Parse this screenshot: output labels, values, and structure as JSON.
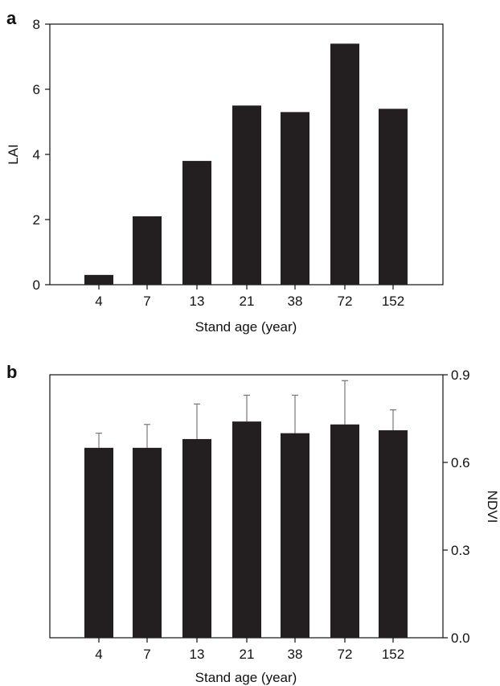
{
  "chart_data": [
    {
      "panel": "a",
      "type": "bar",
      "categories": [
        "4",
        "7",
        "13",
        "21",
        "38",
        "72",
        "152"
      ],
      "values": [
        0.3,
        2.1,
        3.8,
        5.5,
        5.3,
        7.4,
        5.4
      ],
      "xlabel": "Stand age (year)",
      "ylabel": "LAI",
      "ylim": [
        0,
        8
      ],
      "yticks": [
        "0",
        "2",
        "4",
        "6",
        "8"
      ],
      "yaxis_side": "left",
      "grid": false,
      "bar_color": "#231f20"
    },
    {
      "panel": "b",
      "type": "bar",
      "categories": [
        "4",
        "7",
        "13",
        "21",
        "38",
        "72",
        "152"
      ],
      "values": [
        0.65,
        0.65,
        0.68,
        0.74,
        0.7,
        0.73,
        0.71
      ],
      "errors": [
        0.05,
        0.08,
        0.12,
        0.09,
        0.13,
        0.15,
        0.07
      ],
      "xlabel": "Stand age (year)",
      "ylabel": "NDVI",
      "ylim": [
        0,
        0.9
      ],
      "yticks": [
        "0.0",
        "0.3",
        "0.6",
        "0.9"
      ],
      "yaxis_side": "right",
      "grid": false,
      "bar_color": "#231f20",
      "error_color": "#777777"
    }
  ]
}
